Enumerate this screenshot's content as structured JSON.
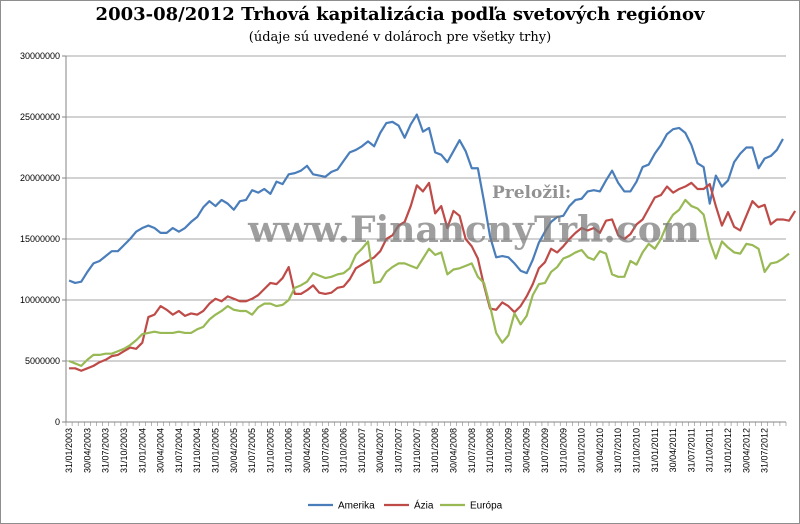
{
  "chart_data": {
    "type": "line",
    "title": "2003-08/2012 Trhová kapitalizácia podľa svetových regiónov",
    "subtitle": "(údaje sú uvedené v dolároch pre všetky trhy)",
    "xlabel": "",
    "ylabel": "",
    "ylim": [
      0,
      30000000
    ],
    "yticks": [
      "0",
      "5000000",
      "10000000",
      "15000000",
      "20000000",
      "25000000",
      "30000000"
    ],
    "grid": true,
    "legend_position": "bottom",
    "x_tick_labels": [
      "31/01/2003",
      "30/04/2003",
      "31/07/2003",
      "31/10/2003",
      "31/01/2004",
      "30/04/2004",
      "31/07/2004",
      "31/10/2004",
      "31/01/2005",
      "30/04/2005",
      "31/07/2005",
      "31/10/2005",
      "31/01/2006",
      "30/04/2006",
      "31/07/2006",
      "31/10/2006",
      "31/01/2007",
      "30/04/2007",
      "31/07/2007",
      "31/10/2007",
      "31/01/2008",
      "30/04/2008",
      "31/07/2008",
      "31/10/2008",
      "31/01/2009",
      "30/04/2009",
      "31/07/2009",
      "31/10/2009",
      "31/01/2010",
      "30/04/2010",
      "31/07/2010",
      "31/10/2010",
      "31/01/2011",
      "30/04/2011",
      "31/07/2011",
      "31/10/2011",
      "31/01/2012",
      "30/04/2012",
      "31/07/2012"
    ],
    "series": [
      {
        "name": "Amerika",
        "color": "#4a7ebb",
        "values": [
          11600000,
          11400000,
          11500000,
          12300000,
          13000000,
          13200000,
          13600000,
          14000000,
          14000000,
          14500000,
          15000000,
          15600000,
          15900000,
          16100000,
          15900000,
          15500000,
          15500000,
          15900000,
          15600000,
          15900000,
          16400000,
          16800000,
          17600000,
          18100000,
          17700000,
          18200000,
          17900000,
          17400000,
          18100000,
          18200000,
          19000000,
          18800000,
          19100000,
          18700000,
          19700000,
          19500000,
          20300000,
          20400000,
          20600000,
          21000000,
          20300000,
          20200000,
          20100000,
          20500000,
          20700000,
          21400000,
          22100000,
          22300000,
          22600000,
          23000000,
          22600000,
          23700000,
          24500000,
          24600000,
          24300000,
          23300000,
          24400000,
          25200000,
          23800000,
          24100000,
          22100000,
          21900000,
          21300000,
          22200000,
          23100000,
          22200000,
          20800000,
          20800000,
          18100000,
          15200000,
          13500000,
          13600000,
          13500000,
          13000000,
          12400000,
          12200000,
          13300000,
          14700000,
          15600000,
          16400000,
          16800000,
          16900000,
          17700000,
          18200000,
          18300000,
          18900000,
          19000000,
          18900000,
          19800000,
          20600000,
          19600000,
          18900000,
          18900000,
          19700000,
          20900000,
          21100000,
          22000000,
          22700000,
          23600000,
          24000000,
          24100000,
          23700000,
          22700000,
          21200000,
          20900000,
          17900000,
          20200000,
          19300000,
          19800000,
          21300000,
          22000000,
          22500000,
          22500000,
          20800000,
          21600000,
          21800000,
          22300000,
          23200000
        ]
      },
      {
        "name": "Ázia",
        "color": "#be4b48",
        "values": [
          4400000,
          4400000,
          4200000,
          4400000,
          4600000,
          4900000,
          5100000,
          5400000,
          5500000,
          5800000,
          6100000,
          6000000,
          6500000,
          8600000,
          8800000,
          9500000,
          9200000,
          8800000,
          9100000,
          8700000,
          8900000,
          8800000,
          9100000,
          9700000,
          10100000,
          9900000,
          10300000,
          10100000,
          9900000,
          9900000,
          10100000,
          10400000,
          10900000,
          11400000,
          11300000,
          11800000,
          12700000,
          10500000,
          10500000,
          10800000,
          11200000,
          10600000,
          10500000,
          10600000,
          11000000,
          11100000,
          11700000,
          12600000,
          12900000,
          13200000,
          13500000,
          14000000,
          15000000,
          15300000,
          16100000,
          16400000,
          17700000,
          19400000,
          18900000,
          19600000,
          17100000,
          17700000,
          15900000,
          17300000,
          16900000,
          15000000,
          14400000,
          13400000,
          11200000,
          9300000,
          9200000,
          9800000,
          9500000,
          9000000,
          9500000,
          10300000,
          11300000,
          12600000,
          13100000,
          14200000,
          13900000,
          14400000,
          15000000,
          15500000,
          15900000,
          15700000,
          15900000,
          15500000,
          16500000,
          16600000,
          15300000,
          15000000,
          15400000,
          16200000,
          16600000,
          17500000,
          18400000,
          18600000,
          19300000,
          18800000,
          19100000,
          19300000,
          19600000,
          19100000,
          19100000,
          19500000,
          17700000,
          16100000,
          17200000,
          16000000,
          15700000,
          16900000,
          18100000,
          17600000,
          17800000,
          16200000,
          16600000,
          16600000,
          16500000,
          17300000
        ]
      },
      {
        "name": "Európa",
        "color": "#98b954",
        "values": [
          5000000,
          4800000,
          4600000,
          5100000,
          5500000,
          5500000,
          5600000,
          5600000,
          5800000,
          6000000,
          6300000,
          6700000,
          7200000,
          7300000,
          7400000,
          7300000,
          7300000,
          7300000,
          7400000,
          7300000,
          7300000,
          7600000,
          7800000,
          8400000,
          8800000,
          9100000,
          9500000,
          9200000,
          9100000,
          9100000,
          8800000,
          9400000,
          9700000,
          9700000,
          9500000,
          9600000,
          10000000,
          11000000,
          11200000,
          11500000,
          12200000,
          12000000,
          11800000,
          11900000,
          12100000,
          12200000,
          12600000,
          13700000,
          14200000,
          14800000,
          11400000,
          11500000,
          12300000,
          12700000,
          13000000,
          13000000,
          12800000,
          12600000,
          13400000,
          14200000,
          13700000,
          13900000,
          12100000,
          12500000,
          12600000,
          12800000,
          13000000,
          11900000,
          11400000,
          9500000,
          7300000,
          6500000,
          7100000,
          8900000,
          8000000,
          8700000,
          10400000,
          11300000,
          11400000,
          12300000,
          12700000,
          13400000,
          13600000,
          13900000,
          14100000,
          13500000,
          13300000,
          14000000,
          13800000,
          12100000,
          11900000,
          11900000,
          13200000,
          12900000,
          13900000,
          14600000,
          14200000,
          15000000,
          16200000,
          17000000,
          17400000,
          18200000,
          17700000,
          17500000,
          17000000,
          14800000,
          13400000,
          14800000,
          14300000,
          13900000,
          13800000,
          14600000,
          14500000,
          14200000,
          12300000,
          13000000,
          13100000,
          13400000,
          13800000
        ]
      }
    ]
  },
  "watermark": {
    "top": "Preložil:",
    "main": "www.FinancnyTrh.com"
  }
}
